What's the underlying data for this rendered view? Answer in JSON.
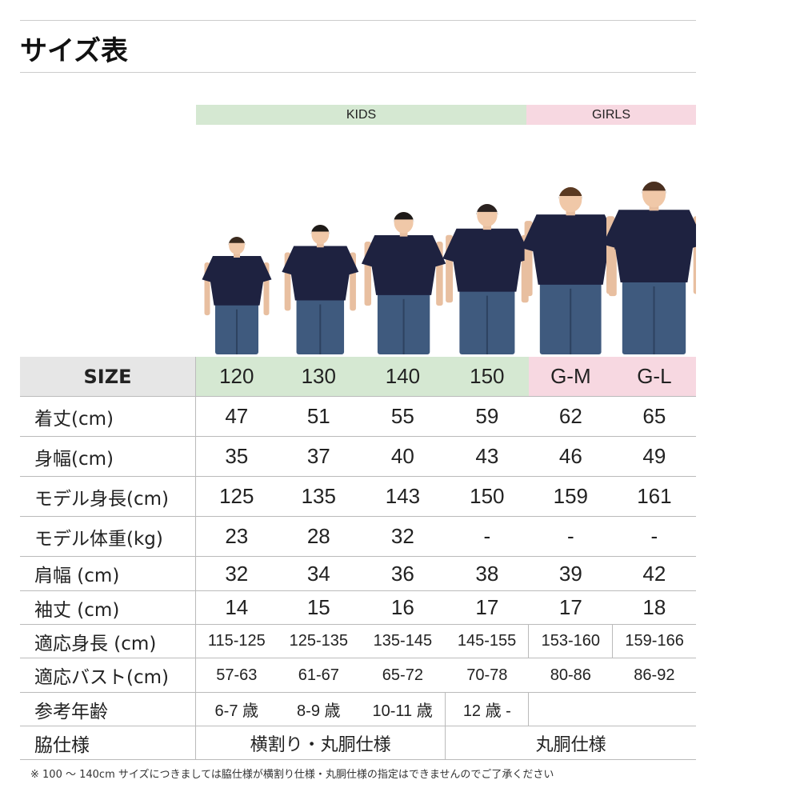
{
  "title": "サイズ表",
  "groups": {
    "kids": "KIDS",
    "girls": "GIRLS",
    "kids_color": "#d5e8d2",
    "girls_color": "#f7d8e1"
  },
  "size_label": "SIZE",
  "sizes": [
    "120",
    "130",
    "140",
    "150",
    "G-M",
    "G-L"
  ],
  "rows": [
    {
      "label": "着丈(cm)",
      "values": [
        "47",
        "51",
        "55",
        "59",
        "62",
        "65"
      ]
    },
    {
      "label": "身幅(cm)",
      "values": [
        "35",
        "37",
        "40",
        "43",
        "46",
        "49"
      ]
    },
    {
      "label": "モデル身長(cm)",
      "values": [
        "125",
        "135",
        "143",
        "150",
        "159",
        "161"
      ]
    },
    {
      "label": "モデル体重(kg)",
      "values": [
        "23",
        "28",
        "32",
        "-",
        "-",
        "-"
      ]
    },
    {
      "label": "肩幅 (cm)",
      "values": [
        "32",
        "34",
        "36",
        "38",
        "39",
        "42"
      ]
    },
    {
      "label": "袖丈 (cm)",
      "values": [
        "14",
        "15",
        "16",
        "17",
        "17",
        "18"
      ]
    },
    {
      "label": "適応身長 (cm)",
      "values": [
        "115-125",
        "125-135",
        "135-145",
        "145-155",
        "153-160",
        "159-166"
      ]
    },
    {
      "label": "適応バスト(cm)",
      "values": [
        "57-63",
        "61-67",
        "65-72",
        "70-78",
        "80-86",
        "86-92"
      ]
    }
  ],
  "age": {
    "label": "参考年齢",
    "values": [
      "6-7 歳",
      "8-9 歳",
      "10-11 歳",
      "12 歳 -"
    ]
  },
  "side": {
    "label": "脇仕様",
    "kids": "横割り・丸胴仕様",
    "girls": "丸胴仕様"
  },
  "note": "※ 100 ～ 140cm サイズにつきましては脇仕様が横割り仕様・丸胴仕様の指定はできませんのでご了承ください"
}
